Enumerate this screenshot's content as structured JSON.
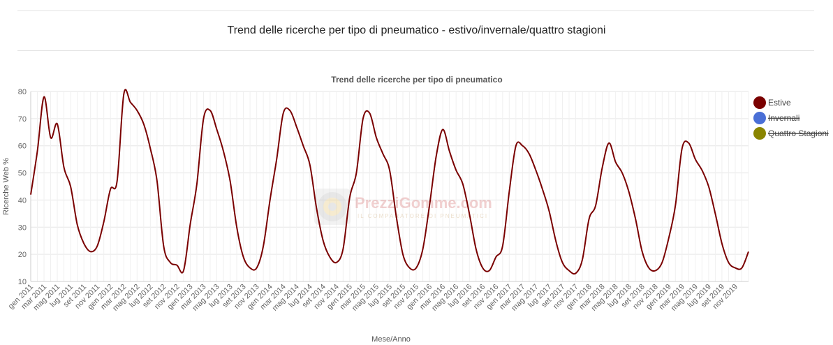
{
  "page": {
    "title": "Trend delle ricerche per tipo di pneumatico - estivo/invernale/quattro stagioni"
  },
  "watermark": {
    "brand": "PrezziGomme.com",
    "tagline": "IL COMPARATORE DI PNEUMATICI"
  },
  "chart_data": {
    "type": "line",
    "title": "Trend delle ricerche per tipo di pneumatico",
    "xlabel": "Mese/Anno",
    "ylabel": "Ricerche Web %",
    "ylim": [
      10,
      80
    ],
    "yticks": [
      10,
      20,
      30,
      40,
      50,
      60,
      70,
      80
    ],
    "grid": true,
    "legend_position": "right",
    "x_tick_labels": [
      "gen 2011",
      "mar 2011",
      "mag 2011",
      "lug 2011",
      "set 2011",
      "nov 2011",
      "gen 2012",
      "mar 2012",
      "mag 2012",
      "lug 2012",
      "set 2012",
      "nov 2012",
      "gen 2013",
      "mar 2013",
      "mag 2013",
      "lug 2013",
      "set 2013",
      "nov 2013",
      "gen 2014",
      "mar 2014",
      "mag 2014",
      "lug 2014",
      "set 2014",
      "nov 2014",
      "gen 2015",
      "mar 2015",
      "mag 2015",
      "lug 2015",
      "set 2015",
      "nov 2015",
      "gen 2016",
      "mar 2016",
      "mag 2016",
      "lug 2016",
      "set 2016",
      "nov 2016",
      "gen 2017",
      "mar 2017",
      "mag 2017",
      "lug 2017",
      "set 2017",
      "nov 2017",
      "gen 2018",
      "mar 2018",
      "mag 2018",
      "lug 2018",
      "set 2018",
      "nov 2018",
      "gen 2019",
      "mar 2019",
      "mag 2019",
      "lug 2019",
      "set 2019",
      "nov 2019"
    ],
    "series": [
      {
        "name": "Estive",
        "color": "#7a0000",
        "visible": true,
        "values": [
          42,
          58,
          78,
          63,
          68,
          52,
          45,
          31,
          24,
          21,
          23,
          32,
          44,
          47,
          79,
          76,
          73,
          68,
          59,
          47,
          23,
          17,
          16,
          14,
          31,
          46,
          70,
          73,
          66,
          58,
          47,
          30,
          19,
          15,
          15,
          23,
          40,
          55,
          72,
          73,
          67,
          60,
          53,
          37,
          25,
          19,
          17,
          22,
          41,
          50,
          70,
          72,
          63,
          57,
          51,
          34,
          20,
          15,
          15,
          22,
          38,
          56,
          66,
          58,
          51,
          46,
          35,
          22,
          15,
          14,
          19,
          23,
          43,
          60,
          60,
          57,
          51,
          44,
          36,
          25,
          17,
          14,
          13,
          18,
          33,
          38,
          52,
          61,
          54,
          50,
          43,
          33,
          21,
          15,
          14,
          17,
          26,
          38,
          59,
          61,
          55,
          51,
          45,
          35,
          24,
          17,
          15,
          15,
          21
        ]
      },
      {
        "name": "Invernali",
        "color": "#4a6fd6",
        "visible": false
      },
      {
        "name": "Quattro Stagioni",
        "color": "#8a8500",
        "visible": false
      }
    ]
  }
}
